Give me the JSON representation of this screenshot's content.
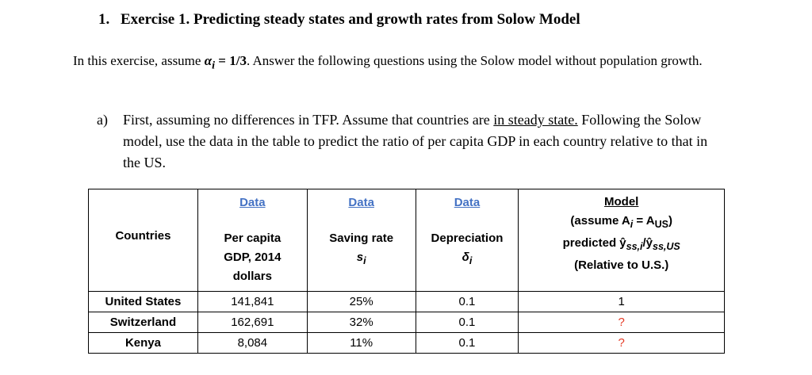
{
  "heading": {
    "number": "1.",
    "title": "Exercise 1. Predicting steady states and growth rates from Solow Model"
  },
  "intro": {
    "before": "In this exercise, assume ",
    "math": "α",
    "math_sub": "i",
    "math_rest": " = 1/3",
    "after": ". Answer the following questions using the Solow model without population growth."
  },
  "question_a": {
    "label": "a)",
    "text_before": "First, assuming no differences in TFP. Assume that countries are ",
    "underlined": "in steady state.",
    "text_after": " Following the Solow model, use the data in the table to predict the ratio of per capita GDP in each country relative to that in the US."
  },
  "table": {
    "header_tags": [
      "Data",
      "Data",
      "Data",
      "Model"
    ],
    "model_note": "(assume A",
    "model_note_sub": "i",
    "model_note_eq": " = A",
    "model_note_sub2": "US",
    "model_note_end": ")",
    "col_countries": "Countries",
    "col_gdp_line1": "Per capita",
    "col_gdp_line2": "GDP, 2014",
    "col_gdp_line3": "dollars",
    "col_saving_line1": "Saving rate",
    "col_saving_sym": "s",
    "col_saving_sub": "i",
    "col_depr_line1": "Depreciation",
    "col_depr_sym": "δ",
    "col_depr_sub": "i",
    "col_model_line1": "predicted ŷ",
    "col_model_sub1": "ss,i",
    "col_model_mid": "/ŷ",
    "col_model_sub2": "ss,US",
    "col_model_line2": "(Relative to U.S.)",
    "rows": [
      {
        "country": "United States",
        "gdp": "141,841",
        "saving": "25%",
        "depr": "0.1",
        "model": "1"
      },
      {
        "country": "Switzerland",
        "gdp": "162,691",
        "saving": "32%",
        "depr": "0.1",
        "model": "?"
      },
      {
        "country": "Kenya",
        "gdp": "8,084",
        "saving": "11%",
        "depr": "0.1",
        "model": "?"
      }
    ]
  }
}
